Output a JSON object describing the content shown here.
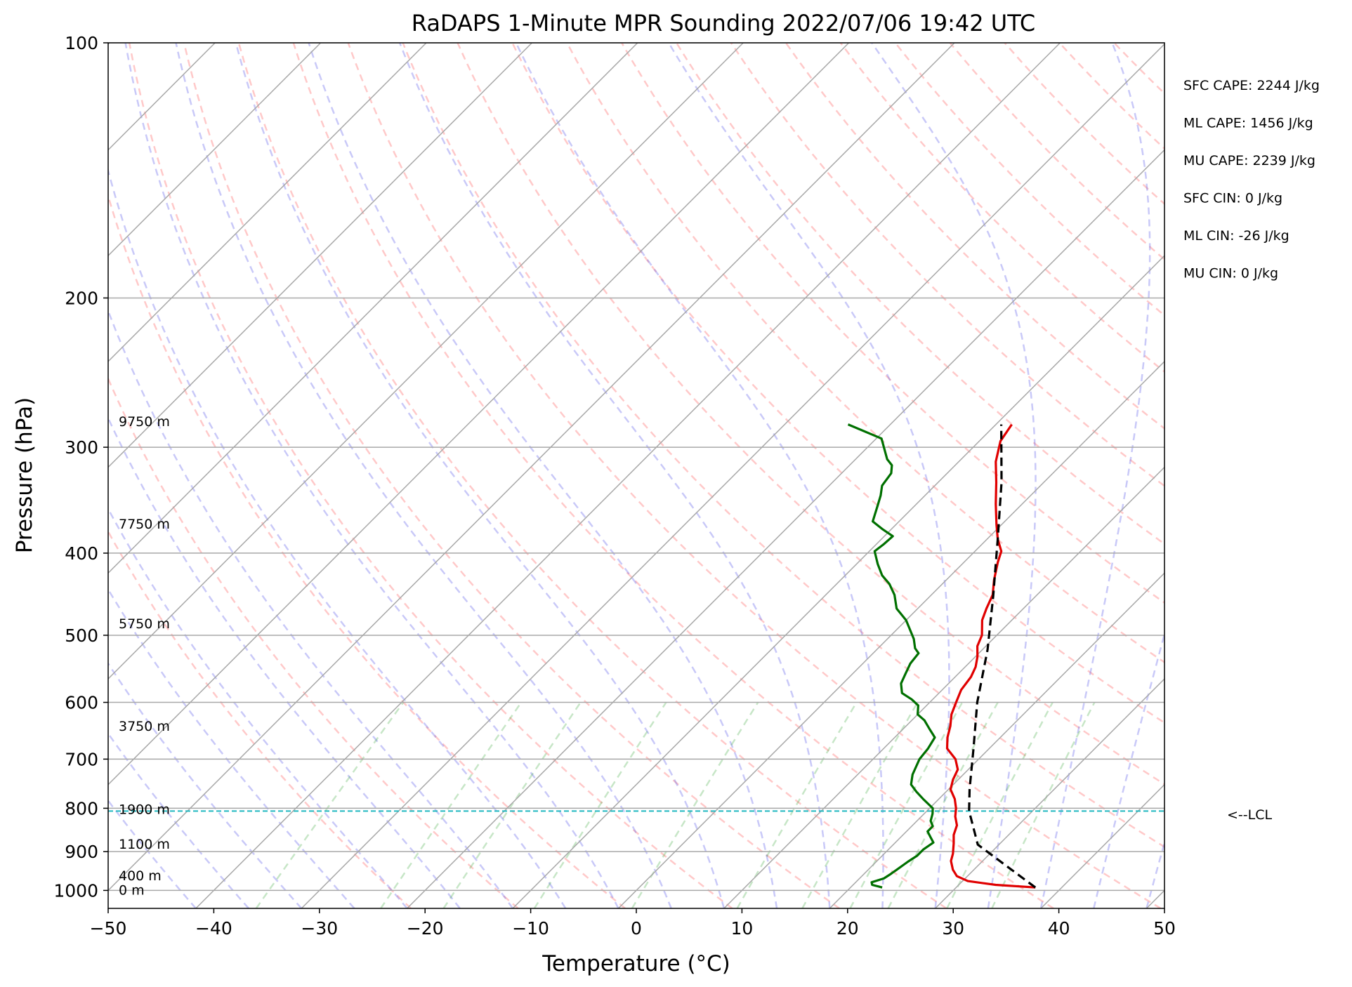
{
  "chart_data": {
    "type": "line",
    "chart_kind": "skew-T log-P sounding",
    "title": "RaDAPS 1-Minute MPR Sounding 2022/07/06 19:42 UTC",
    "xlabel": "Temperature (°C)",
    "ylabel": "Pressure (hPa)",
    "xlim": [
      -50,
      50
    ],
    "ylim": [
      1050,
      100
    ],
    "y_scale": "log",
    "x_ticks": [
      "−50",
      "−40",
      "−30",
      "−20",
      "−10",
      "0",
      "10",
      "20",
      "30",
      "40",
      "50"
    ],
    "y_ticks": [
      "100",
      "200",
      "300",
      "400",
      "500",
      "600",
      "700",
      "800",
      "900",
      "1000"
    ],
    "grid": true,
    "altitude_labels": [
      {
        "p": 1000,
        "text": "0 m"
      },
      {
        "p": 962,
        "text": "400 m"
      },
      {
        "p": 883,
        "text": "1100 m"
      },
      {
        "p": 803,
        "text": "1900 m"
      },
      {
        "p": 641,
        "text": "3750 m"
      },
      {
        "p": 485,
        "text": "5750 m"
      },
      {
        "p": 370,
        "text": "7750 m"
      },
      {
        "p": 280,
        "text": "9750 m"
      }
    ],
    "lcl": {
      "p": 806,
      "text": "<--LCL"
    },
    "stats": [
      "SFC CAPE: 2244 J/kg",
      "ML CAPE: 1456 J/kg",
      "MU CAPE: 2239 J/kg",
      "SFC CIN: 0 J/kg",
      "ML CIN: -26 J/kg",
      "MU CIN: 0 J/kg"
    ],
    "series": [
      {
        "color": "#e00000",
        "points": [
          [
            37.5,
            992
          ],
          [
            33.5,
            985
          ],
          [
            30.5,
            975
          ],
          [
            29.0,
            962
          ],
          [
            28.0,
            945
          ],
          [
            27.0,
            923
          ],
          [
            26.5,
            905
          ],
          [
            25.6,
            880
          ],
          [
            24.8,
            860
          ],
          [
            24.2,
            838
          ],
          [
            23.2,
            818
          ],
          [
            22.5,
            800
          ],
          [
            21.5,
            780
          ],
          [
            20.2,
            760
          ],
          [
            19.5,
            740
          ],
          [
            19.0,
            720
          ],
          [
            17.8,
            700
          ],
          [
            16.0,
            680
          ],
          [
            15.0,
            660
          ],
          [
            14.2,
            640
          ],
          [
            13.2,
            620
          ],
          [
            12.5,
            600
          ],
          [
            11.8,
            580
          ],
          [
            11.5,
            560
          ],
          [
            11.0,
            545
          ],
          [
            10.2,
            530
          ],
          [
            9.2,
            515
          ],
          [
            8.6,
            500
          ],
          [
            7.2,
            480
          ],
          [
            6.5,
            465
          ],
          [
            5.8,
            448
          ],
          [
            4.5,
            430
          ],
          [
            3.2,
            410
          ],
          [
            2.5,
            398
          ],
          [
            1.0,
            385
          ],
          [
            -0.5,
            370
          ],
          [
            -2.5,
            350
          ],
          [
            -4.5,
            330
          ],
          [
            -6.5,
            312
          ],
          [
            -8.0,
            295
          ],
          [
            -8.5,
            282
          ]
        ]
      },
      {
        "color": "#007000",
        "points": [
          [
            23.0,
            992
          ],
          [
            21.8,
            985
          ],
          [
            21.5,
            978
          ],
          [
            22.3,
            968
          ],
          [
            22.5,
            958
          ],
          [
            22.7,
            945
          ],
          [
            23.0,
            925
          ],
          [
            23.3,
            910
          ],
          [
            23.3,
            895
          ],
          [
            23.6,
            878
          ],
          [
            22.8,
            865
          ],
          [
            22.0,
            852
          ],
          [
            22.0,
            840
          ],
          [
            21.3,
            828
          ],
          [
            20.8,
            812
          ],
          [
            20.3,
            800
          ],
          [
            18.5,
            780
          ],
          [
            17.2,
            765
          ],
          [
            16.0,
            750
          ],
          [
            15.2,
            730
          ],
          [
            14.4,
            700
          ],
          [
            14.2,
            680
          ],
          [
            13.8,
            660
          ],
          [
            12.5,
            645
          ],
          [
            11.2,
            630
          ],
          [
            10.0,
            620
          ],
          [
            9.2,
            605
          ],
          [
            8.0,
            595
          ],
          [
            6.5,
            585
          ],
          [
            5.5,
            570
          ],
          [
            5.0,
            555
          ],
          [
            4.5,
            540
          ],
          [
            4.3,
            525
          ],
          [
            3.5,
            518
          ],
          [
            2.5,
            505
          ],
          [
            0.0,
            480
          ],
          [
            -2.0,
            465
          ],
          [
            -3.5,
            448
          ],
          [
            -5.0,
            435
          ],
          [
            -6.5,
            425
          ],
          [
            -8.0,
            412
          ],
          [
            -9.5,
            398
          ],
          [
            -9.3,
            390
          ],
          [
            -9.2,
            382
          ],
          [
            -10.8,
            375
          ],
          [
            -12.5,
            367
          ],
          [
            -13.5,
            352
          ],
          [
            -14.2,
            342
          ],
          [
            -15.0,
            333
          ],
          [
            -15.3,
            322
          ],
          [
            -16.0,
            315
          ],
          [
            -17.0,
            310
          ],
          [
            -19.5,
            293
          ],
          [
            -24.0,
            282
          ]
        ]
      },
      {
        "color": "#000000",
        "dashed": true,
        "points": [
          [
            37.5,
            992
          ],
          [
            28.0,
            883
          ],
          [
            24.0,
            806
          ],
          [
            22.0,
            760
          ],
          [
            18.5,
            680
          ],
          [
            14.5,
            600
          ],
          [
            10.5,
            520
          ],
          [
            6.0,
            450
          ],
          [
            1.0,
            385
          ],
          [
            -4.0,
            330
          ],
          [
            -9.5,
            282
          ]
        ]
      }
    ]
  }
}
